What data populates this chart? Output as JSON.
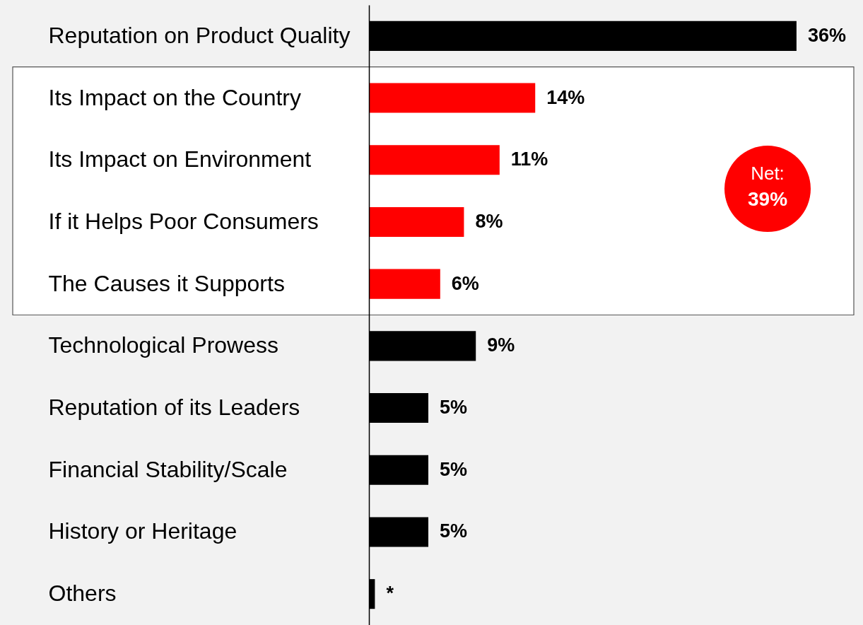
{
  "chart_data": {
    "type": "bar",
    "orientation": "horizontal",
    "categories": [
      "Reputation on Product Quality",
      "Its Impact on the Country",
      "Its Impact on Environment",
      "If it Helps Poor Consumers",
      "The Causes it Supports",
      "Technological Prowess",
      "Reputation of its Leaders",
      "Financial Stability/Scale",
      "History or Heritage",
      "Others"
    ],
    "values": [
      36,
      14,
      11,
      8,
      6,
      9,
      5,
      5,
      5,
      0.5
    ],
    "colors": [
      "#000000",
      "#ff0000",
      "#ff0000",
      "#ff0000",
      "#ff0000",
      "#000000",
      "#000000",
      "#000000",
      "#000000",
      "#000000"
    ],
    "value_labels": [
      "36%",
      "14%",
      "11%",
      "8%",
      "6%",
      "9%",
      "5%",
      "5%",
      "5%",
      "*"
    ],
    "xlim": [
      0,
      41.6
    ],
    "tick_labels": "y",
    "bands": [
      {
        "axis": "y",
        "from": "Its Impact on the Country",
        "to": "The Causes it Supports",
        "label": "Net: 39%",
        "color": "#ffffff"
      }
    ]
  }
}
